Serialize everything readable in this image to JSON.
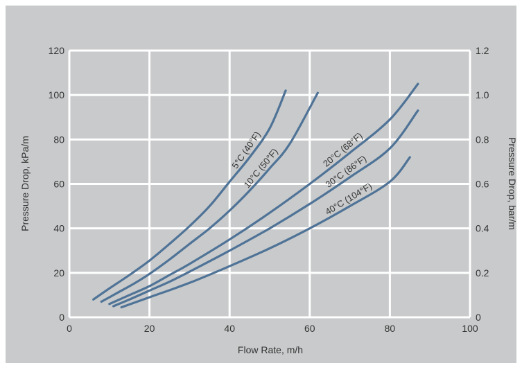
{
  "colors": {
    "background": "#c8cacb",
    "grid": "#ffffff",
    "line": "#4f7397",
    "text": "#333333"
  },
  "chart_data": {
    "type": "line",
    "title": "",
    "xlabel": "Flow Rate, m/h",
    "ylabel": "Pressure Drop, kPa/m",
    "y2label": "Pressure Drop, bar/m",
    "xlim": [
      0,
      100
    ],
    "ylim": [
      0,
      120
    ],
    "y2lim": [
      0,
      1.2
    ],
    "grid": true,
    "x_ticks": [
      "0",
      "20",
      "40",
      "60",
      "80",
      "100"
    ],
    "y_ticks": [
      "0",
      "20",
      "40",
      "60",
      "80",
      "100",
      "120"
    ],
    "y2_ticks": [
      "0",
      "0.2",
      "0.4",
      "0.6",
      "0.8",
      "1.0",
      "1.2"
    ],
    "series": [
      {
        "name": "5°C (40°F)",
        "x": [
          6,
          10,
          15,
          20,
          25,
          30,
          35,
          40,
          45,
          50,
          54
        ],
        "y": [
          8,
          13,
          19,
          25.5,
          33,
          41,
          50,
          61,
          72,
          85,
          102
        ]
      },
      {
        "name": "10°C (50°F)",
        "x": [
          8,
          12,
          16,
          20,
          25,
          30,
          35,
          40,
          45,
          50,
          55,
          62
        ],
        "y": [
          7,
          11,
          15,
          19.5,
          26,
          33,
          40,
          48,
          57,
          67,
          78,
          101
        ]
      },
      {
        "name": "20°C (68°F)",
        "x": [
          10,
          15,
          20,
          25,
          30,
          40,
          50,
          60,
          70,
          80,
          87
        ],
        "y": [
          6,
          10,
          14,
          19,
          24,
          35,
          47,
          60,
          74,
          89,
          105
        ]
      },
      {
        "name": "30°C (86°F)",
        "x": [
          11,
          15,
          20,
          25,
          30,
          40,
          50,
          60,
          70,
          80,
          87
        ],
        "y": [
          5,
          8,
          12,
          16,
          20.5,
          30,
          40,
          51,
          63,
          76,
          93
        ]
      },
      {
        "name": "40°C (104°F)",
        "x": [
          13,
          20,
          30,
          40,
          50,
          60,
          70,
          80,
          85
        ],
        "y": [
          4.5,
          9,
          15.5,
          23,
          31,
          40,
          50,
          61,
          72
        ]
      }
    ]
  }
}
